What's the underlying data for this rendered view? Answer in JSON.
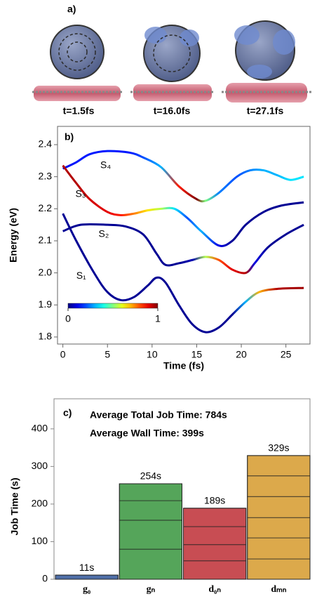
{
  "panel_a": {
    "label": "a)",
    "snapshots": [
      "t=1.5fs",
      "t=16.0fs",
      "t=27.1fs"
    ]
  },
  "chart_data": [
    {
      "type": "line",
      "label": "b)",
      "xlabel": "Time (fs)",
      "ylabel": "Energy (eV)",
      "xlim": [
        -0.6,
        27.7
      ],
      "ylim": [
        1.778,
        2.457
      ],
      "xticks": [
        0,
        5,
        10,
        15,
        20,
        25
      ],
      "yticks": [
        1.8,
        1.9,
        {
          "value": 2,
          "label": "2.0"
        },
        2.1,
        2.2,
        2.3,
        2.4
      ],
      "colormap": "jet",
      "colorbar": {
        "ticks": [
          0,
          1
        ]
      },
      "series": [
        {
          "name": "S₄",
          "x": [
            0,
            1.5,
            3,
            5,
            7.5,
            9,
            11,
            13,
            15,
            16,
            17.5,
            19.5,
            21,
            22.5,
            24,
            25.5,
            27
          ],
          "values": [
            2.325,
            2.345,
            2.37,
            2.38,
            2.375,
            2.36,
            2.33,
            2.27,
            2.23,
            2.225,
            2.25,
            2.3,
            2.32,
            2.32,
            2.305,
            2.29,
            2.3
          ],
          "population": [
            0.1,
            0.15,
            0.15,
            0.15,
            0.15,
            0.2,
            0.3,
            0.85,
            1,
            0.5,
            0.25,
            0.2,
            0.25,
            0.3,
            0.3,
            0.35,
            0.35
          ]
        },
        {
          "name": "S₃",
          "x": [
            0,
            1.5,
            3,
            5,
            6.5,
            8,
            9.5,
            11,
            12.5,
            14,
            15.5,
            17.5,
            19,
            20.5,
            22.5,
            24.5,
            27
          ],
          "values": [
            2.335,
            2.28,
            2.23,
            2.19,
            2.18,
            2.185,
            2.195,
            2.2,
            2.2,
            2.17,
            2.13,
            2.085,
            2.1,
            2.15,
            2.19,
            2.21,
            2.22
          ],
          "population": [
            0.95,
            0.95,
            0.92,
            0.9,
            0.85,
            0.75,
            0.65,
            0.55,
            0.35,
            0.2,
            0.3,
            0.1,
            0.02,
            0.02,
            0.02,
            0.02,
            0.02
          ]
        },
        {
          "name": "S₂",
          "x": [
            0,
            2,
            5,
            7,
            9,
            10.5,
            11.5,
            13,
            14.5,
            16,
            17.5,
            19,
            20.5,
            21.5,
            23,
            25,
            27
          ],
          "values": [
            2.13,
            2.15,
            2.15,
            2.145,
            2.12,
            2.06,
            2.025,
            2.03,
            2.04,
            2.05,
            2.04,
            2.01,
            2,
            2.03,
            2.08,
            2.12,
            2.15
          ],
          "population": [
            0.02,
            0.02,
            0.02,
            0.02,
            0.02,
            0.02,
            0.02,
            0.02,
            0.05,
            0.55,
            0.8,
            0.9,
            0.95,
            0.1,
            0.02,
            0.02,
            0.02
          ]
        },
        {
          "name": "S₁",
          "x": [
            0,
            1.5,
            3.5,
            5,
            6.5,
            8,
            9.5,
            10.5,
            11.5,
            13,
            14.5,
            16,
            17.5,
            19,
            20.5,
            22,
            24,
            27
          ],
          "values": [
            2.185,
            2.1,
            2,
            1.94,
            1.915,
            1.925,
            1.96,
            1.985,
            1.97,
            1.9,
            1.84,
            1.815,
            1.83,
            1.87,
            1.91,
            1.94,
            1.95,
            1.953
          ],
          "population": [
            0.02,
            0.02,
            0.02,
            0.02,
            0.02,
            0.02,
            0.02,
            0.02,
            0.02,
            0.02,
            0.02,
            0.02,
            0.02,
            0.02,
            0.3,
            0.7,
            0.95,
            0.97
          ]
        }
      ]
    },
    {
      "type": "bar",
      "label": "c)",
      "ylabel": "Job Time (s)",
      "annotations": [
        "Average Total Job Time: 784s",
        "Average Wall Time: 399s"
      ],
      "categories": [
        "g₀",
        "gₙ",
        "d₀ₙ",
        "dₘₙ"
      ],
      "values": [
        11,
        254,
        189,
        329
      ],
      "value_labels": [
        "11s",
        "254s",
        "189s",
        "329s"
      ],
      "segments": [
        [
          11
        ],
        [
          80,
          77,
          52,
          45
        ],
        [
          49,
          43,
          48,
          49
        ],
        [
          54,
          56,
          54,
          56,
          55,
          54
        ]
      ],
      "colors": [
        "#4f6fa8",
        "#55a55a",
        "#c84d53",
        "#dca94b"
      ],
      "ylim": [
        0,
        480
      ],
      "yticks": [
        0,
        100,
        200,
        300,
        400
      ]
    }
  ]
}
